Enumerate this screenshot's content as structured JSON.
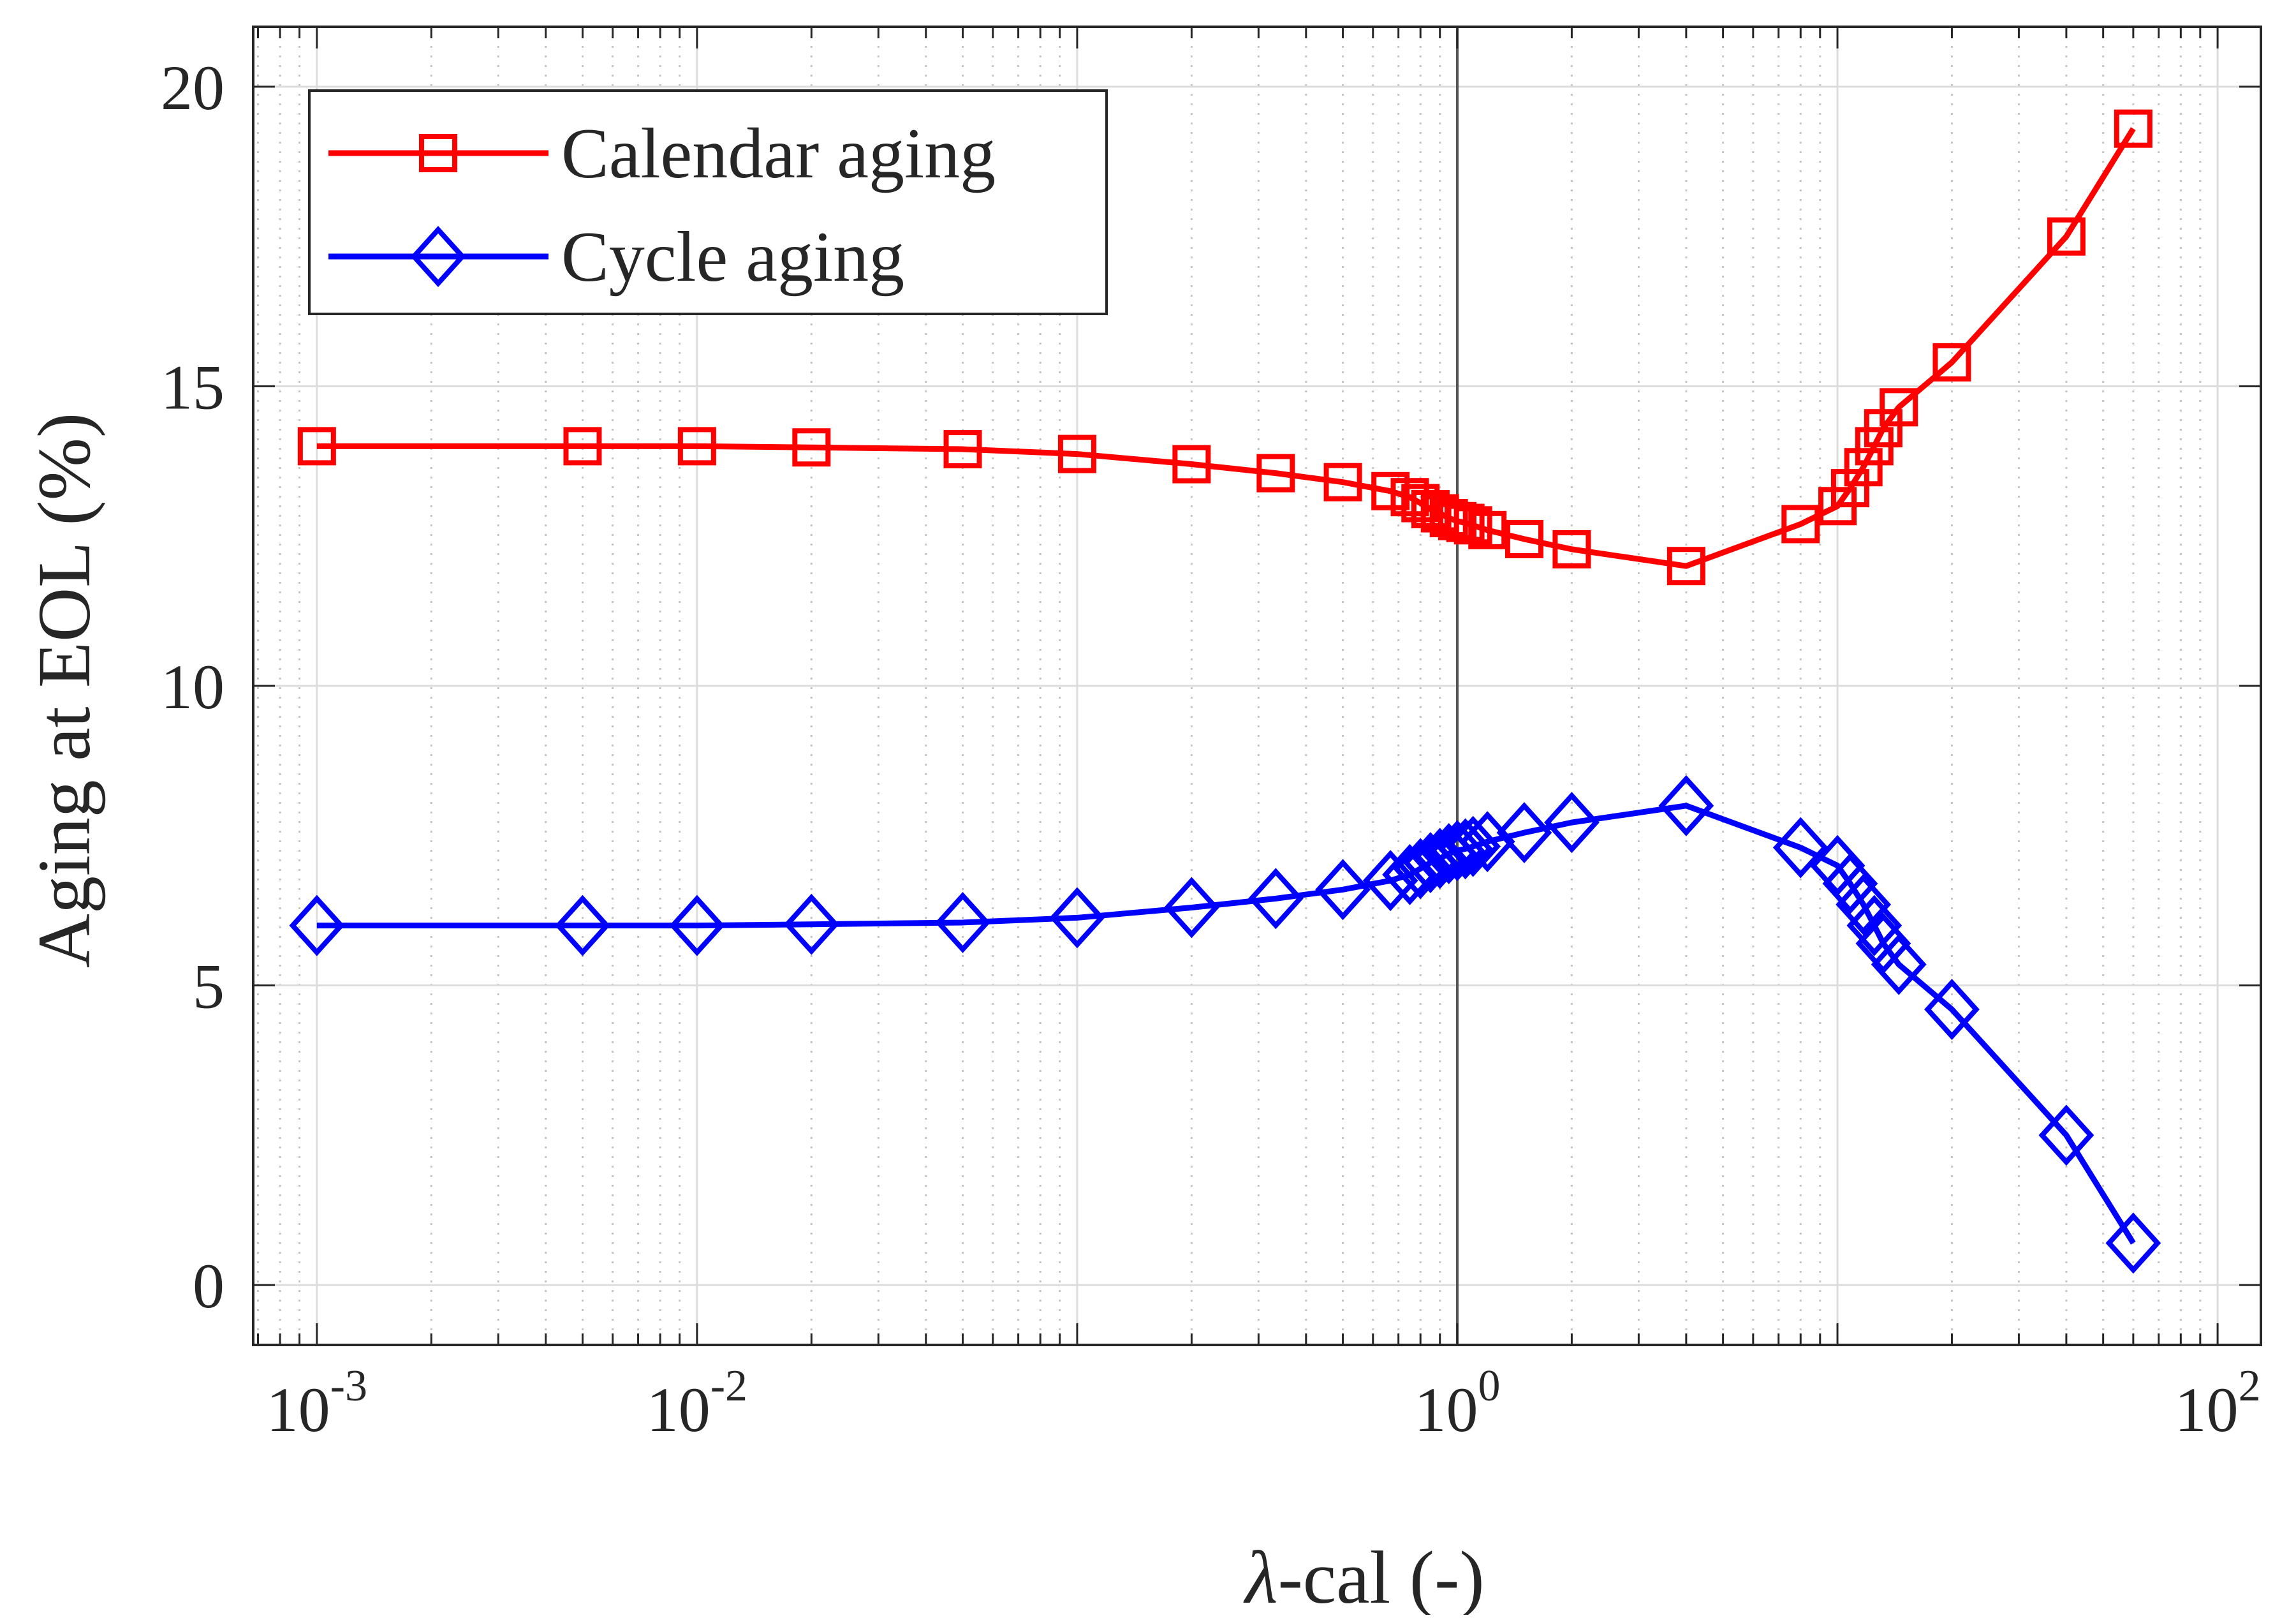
{
  "chart_data": {
    "type": "line",
    "xlabel_prefix": "λ",
    "xlabel_suffix": "-cal (-)",
    "ylabel": "Aging at EOL (%)",
    "x_scale": "log",
    "xlim": [
      0.00068,
      130
    ],
    "ylim": [
      -1,
      21
    ],
    "x_ticks": [
      {
        "value": 0.001,
        "base": "10",
        "exp": "-3"
      },
      {
        "value": 0.01,
        "base": "10",
        "exp": "-2"
      },
      {
        "value": 1,
        "base": "10",
        "exp": "0"
      },
      {
        "value": 100,
        "base": "10",
        "exp": "2"
      }
    ],
    "y_ticks": [
      0,
      5,
      10,
      15,
      20
    ],
    "grid": true,
    "minor_grid": true,
    "reference_line_x": 1,
    "legend_position": "top-left",
    "series": [
      {
        "name": "Calendar aging",
        "color": "#ff0000",
        "marker": "square",
        "x": [
          0.001,
          0.005,
          0.01,
          0.02,
          0.05,
          0.1,
          0.2,
          0.333,
          0.5,
          0.667,
          0.75,
          0.8,
          0.85,
          0.9,
          0.95,
          1.0,
          1.05,
          1.1,
          1.2,
          1.5,
          2,
          4,
          8,
          10,
          10.8,
          11.7,
          12.5,
          13.2,
          14.5,
          20,
          40,
          60
        ],
        "y": [
          14.0,
          14.0,
          14.0,
          13.98,
          13.95,
          13.87,
          13.7,
          13.55,
          13.4,
          13.25,
          13.15,
          13.05,
          12.95,
          12.88,
          12.8,
          12.75,
          12.72,
          12.68,
          12.6,
          12.45,
          12.28,
          12.0,
          12.7,
          13.0,
          13.3,
          13.65,
          14.0,
          14.3,
          14.65,
          15.4,
          17.5,
          19.3
        ]
      },
      {
        "name": "Cycle aging",
        "color": "#0000ff",
        "marker": "diamond",
        "x": [
          0.001,
          0.005,
          0.01,
          0.02,
          0.05,
          0.1,
          0.2,
          0.333,
          0.5,
          0.667,
          0.75,
          0.8,
          0.85,
          0.9,
          0.95,
          1.0,
          1.05,
          1.1,
          1.2,
          1.5,
          2,
          4,
          8,
          10,
          10.8,
          11.7,
          12.5,
          13.2,
          14.5,
          20,
          40,
          60
        ],
        "y": [
          6.0,
          6.0,
          6.0,
          6.02,
          6.05,
          6.13,
          6.3,
          6.45,
          6.6,
          6.75,
          6.85,
          6.95,
          7.05,
          7.12,
          7.2,
          7.25,
          7.28,
          7.32,
          7.4,
          7.55,
          7.72,
          8.0,
          7.3,
          7.0,
          6.7,
          6.35,
          6.0,
          5.7,
          5.35,
          4.6,
          2.5,
          0.7
        ]
      }
    ]
  }
}
